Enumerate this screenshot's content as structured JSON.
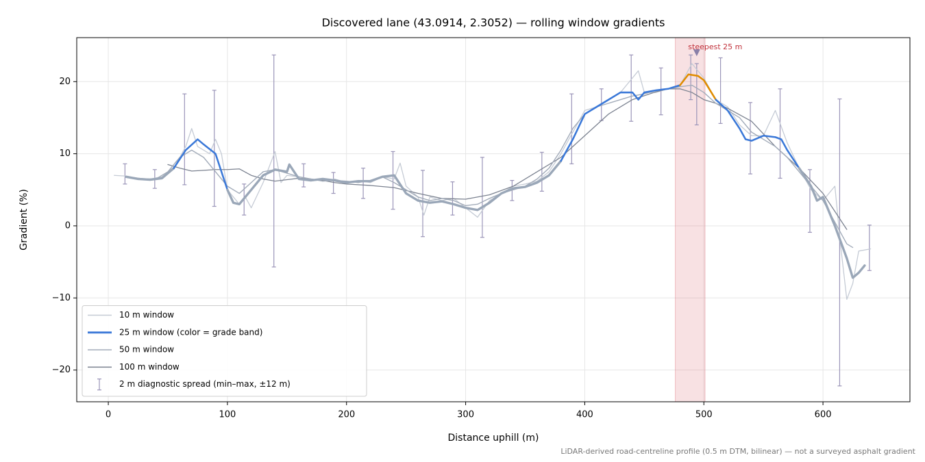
{
  "chart_data": {
    "type": "line",
    "title": "Discovered lane (43.0914, 2.3052) — rolling window gradients",
    "xlabel": "Distance uphill (m)",
    "ylabel": "Gradient (%)",
    "footnote": "LiDAR-derived road-centreline profile (0.5 m DTM, bilinear) — not a surveyed asphalt gradient",
    "xlim": [
      -26.5,
      673
    ],
    "ylim": [
      -24.4,
      26.1
    ],
    "xticks": [
      0,
      100,
      200,
      300,
      400,
      500,
      600
    ],
    "yticks": [
      {
        "value": -20,
        "label": "−20"
      },
      {
        "value": -10,
        "label": "−10"
      },
      0,
      10,
      20
    ],
    "grid": true,
    "legend": "lower left",
    "series": [
      {
        "name": "10 m window",
        "color": "#c5cbd5",
        "width": 1.3,
        "x": [
          5,
          15,
          25,
          35,
          45,
          55,
          65,
          70,
          75,
          85,
          90,
          95,
          100,
          110,
          115,
          120,
          130,
          140,
          145,
          150,
          160,
          170,
          180,
          190,
          200,
          210,
          220,
          230,
          240,
          245,
          250,
          260,
          265,
          270,
          280,
          290,
          300,
          310,
          320,
          330,
          340,
          350,
          360,
          370,
          380,
          390,
          400,
          410,
          420,
          430,
          440,
          445,
          450,
          460,
          470,
          480,
          490,
          500,
          510,
          520,
          530,
          540,
          550,
          560,
          570,
          580,
          590,
          600,
          605,
          610,
          615,
          620,
          625,
          630,
          640
        ],
        "values": [
          7.0,
          6.9,
          6.6,
          6.5,
          6.8,
          8.0,
          11,
          13.5,
          11,
          10,
          12,
          10,
          5,
          3,
          4,
          2.5,
          6,
          10.3,
          6,
          7,
          6.8,
          6.5,
          6.2,
          6.5,
          6.0,
          6.3,
          6.0,
          6.8,
          6.5,
          8.7,
          5.5,
          4.0,
          1.5,
          4.0,
          3.5,
          3.8,
          2.5,
          1.2,
          3.5,
          4.5,
          5.5,
          5.8,
          6.2,
          7.5,
          10,
          13,
          16,
          16.5,
          17.5,
          18.5,
          20.5,
          21.5,
          18.5,
          18.5,
          19,
          19.5,
          22.5,
          20.5,
          17.5,
          16.5,
          14,
          12.5,
          12.5,
          16,
          11.5,
          8,
          5,
          3.5,
          4.5,
          5.5,
          -3,
          -10.2,
          -8,
          -3.5,
          -3.2
        ]
      },
      {
        "name": "25 m window (color = grade band)",
        "color": "#9aa7b8",
        "width": 3.4,
        "grade_bands": [
          {
            "from": 10,
            "color": "#3a78d8"
          },
          {
            "from": 20,
            "color": "#e08c00"
          }
        ],
        "x": [
          15,
          25,
          35,
          45,
          55,
          65,
          75,
          80,
          90,
          100,
          105,
          110,
          120,
          130,
          140,
          150,
          152,
          160,
          170,
          180,
          190,
          200,
          210,
          220,
          230,
          240,
          250,
          260,
          270,
          280,
          290,
          300,
          310,
          320,
          330,
          340,
          350,
          360,
          370,
          380,
          390,
          400,
          410,
          420,
          430,
          440,
          445,
          450,
          460,
          470,
          480,
          487,
          495,
          500,
          510,
          520,
          530,
          535,
          540,
          550,
          560,
          565,
          570,
          580,
          590,
          595,
          600,
          610,
          620,
          625,
          630,
          635
        ],
        "values": [
          6.8,
          6.5,
          6.4,
          6.6,
          8.0,
          10.5,
          12.0,
          11.3,
          10,
          5,
          3.2,
          3,
          5,
          7,
          7.8,
          7.5,
          8.5,
          6.5,
          6.3,
          6.5,
          6.3,
          6.0,
          6.2,
          6.2,
          6.8,
          7,
          4.5,
          3.5,
          3.2,
          3.4,
          3.0,
          2.5,
          2.2,
          3.2,
          4.5,
          5.2,
          5.4,
          6.0,
          7.0,
          9.0,
          12,
          15.5,
          16.5,
          17.5,
          18.5,
          18.5,
          17.5,
          18.5,
          18.8,
          19,
          19.5,
          21,
          20.8,
          20.2,
          17.5,
          16,
          13.5,
          12,
          11.8,
          12.5,
          12.3,
          12,
          10.5,
          8.0,
          5.5,
          3.5,
          4.0,
          0,
          -4.5,
          -7.2,
          -6.5,
          -5.5
        ]
      },
      {
        "name": "50 m window",
        "color": "#a2abb9",
        "width": 1.4,
        "x": [
          20,
          30,
          40,
          50,
          60,
          70,
          80,
          90,
          100,
          110,
          120,
          130,
          140,
          150,
          160,
          170,
          180,
          190,
          200,
          210,
          220,
          230,
          240,
          250,
          260,
          270,
          280,
          290,
          300,
          310,
          320,
          330,
          340,
          350,
          360,
          370,
          380,
          390,
          400,
          410,
          420,
          430,
          440,
          450,
          460,
          470,
          480,
          490,
          500,
          510,
          520,
          530,
          540,
          550,
          560,
          570,
          580,
          590,
          600,
          610,
          620,
          625
        ],
        "values": [
          6.7,
          6.5,
          6.5,
          7.5,
          9.5,
          10.5,
          9.5,
          7.5,
          5.5,
          4.5,
          6,
          7.5,
          7.8,
          7.3,
          6.8,
          6.5,
          6.2,
          6.3,
          6.2,
          6.0,
          6.3,
          6.8,
          6.0,
          5.0,
          4.0,
          3.5,
          3.8,
          3.5,
          2.8,
          3.0,
          3.8,
          4.5,
          5.0,
          5.5,
          6.5,
          8.0,
          10.5,
          13.5,
          15.5,
          16.5,
          17,
          17.5,
          18.0,
          18.3,
          18.8,
          19.0,
          19.3,
          19.5,
          18.5,
          17.0,
          16.0,
          15.0,
          13.0,
          12.0,
          11.0,
          9.5,
          7.5,
          5.5,
          3.5,
          0.5,
          -2.5,
          -3.0
        ]
      },
      {
        "name": "100 m window",
        "color": "#7b8290",
        "width": 1.3,
        "x": [
          50,
          60,
          70,
          80,
          90,
          100,
          110,
          120,
          130,
          140,
          150,
          160,
          170,
          180,
          190,
          200,
          220,
          240,
          260,
          280,
          300,
          320,
          340,
          360,
          380,
          400,
          420,
          440,
          460,
          470,
          480,
          490,
          500,
          510,
          520,
          540,
          560,
          580,
          600,
          610,
          620
        ],
        "values": [
          8.5,
          8.0,
          7.6,
          7.7,
          7.8,
          7.8,
          7.9,
          7.0,
          6.5,
          6.2,
          6.4,
          6.6,
          6.5,
          6.3,
          6.0,
          5.8,
          5.6,
          5.3,
          4.5,
          3.8,
          3.7,
          4.3,
          5.5,
          7.5,
          9.5,
          12.5,
          15.5,
          17.5,
          18.6,
          19,
          19,
          18.5,
          17.5,
          17,
          16.3,
          14.5,
          11,
          8,
          4.5,
          2.0,
          -0.5
        ]
      }
    ],
    "errorbars": {
      "name": "2 m diagnostic spread (min–max, ±12 m)",
      "color": "#9a94b8",
      "x": [
        14,
        39,
        64,
        89,
        114,
        139,
        164,
        189,
        214,
        239,
        264,
        289,
        314,
        339,
        364,
        389,
        414,
        439,
        464,
        489,
        494,
        514,
        539,
        564,
        589,
        614,
        639
      ],
      "low": [
        5.8,
        5.2,
        5.7,
        2.7,
        1.5,
        -5.7,
        5.4,
        4.5,
        3.8,
        2.3,
        -1.5,
        1.5,
        -1.6,
        3.5,
        4.8,
        8.6,
        14.6,
        14.5,
        15.4,
        17.5,
        14.0,
        14.2,
        7.2,
        6.6,
        -0.9,
        -22.2,
        -6.2
      ],
      "high": [
        8.6,
        7.8,
        18.3,
        18.8,
        5.8,
        23.7,
        8.6,
        7.4,
        8.0,
        10.3,
        7.7,
        6.1,
        9.5,
        6.3,
        10.2,
        18.3,
        19.0,
        23.7,
        21.9,
        23.7,
        22.5,
        23.3,
        17.1,
        19.0,
        7.8,
        17.6,
        0.1
      ]
    },
    "highlight_span": [
      476,
      501
    ],
    "annotation": {
      "text": "steepest 25 m",
      "x": 494,
      "y": 24.0,
      "color": "#c0303a"
    }
  }
}
